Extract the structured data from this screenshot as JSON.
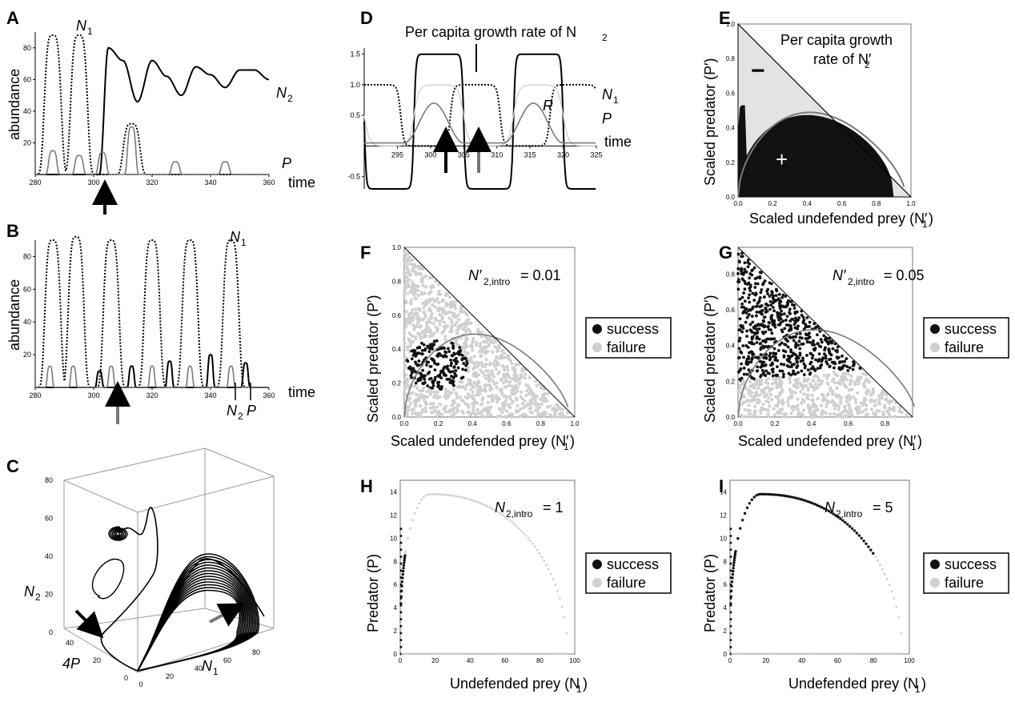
{
  "panels": {
    "A": {
      "letter": "A",
      "ylabel": "abundance",
      "xlabel": "time",
      "labels": [
        "N",
        "1",
        "N",
        "2",
        "P"
      ],
      "xticks": [
        "280",
        "300",
        "320",
        "340",
        "360"
      ],
      "yticks": [
        "20",
        "40",
        "60",
        "80"
      ]
    },
    "B": {
      "letter": "B",
      "ylabel": "abundance",
      "xlabel": "time",
      "labels": [
        "N",
        "1",
        "N",
        "2",
        "P"
      ],
      "xticks": [
        "280",
        "300",
        "320",
        "340",
        "360"
      ],
      "yticks": [
        "20",
        "40",
        "60",
        "80"
      ]
    },
    "C": {
      "letter": "C",
      "axis_n2": "N",
      "axis_n2_sub": "2",
      "axis_4p": "4P",
      "axis_n1": "N",
      "axis_n1_sub": "1",
      "n2ticks": [
        "0",
        "20",
        "40",
        "60",
        "80"
      ],
      "ptick": [
        "0",
        "20",
        "40"
      ],
      "n1ticks": [
        "0",
        "20",
        "40",
        "60",
        "80"
      ]
    },
    "D": {
      "letter": "D",
      "title": "Per capita growth rate of N",
      "title_sub": "2",
      "xlabel": "time",
      "labels": [
        "N",
        "1",
        "P",
        "R"
      ],
      "xticks": [
        "295",
        "300",
        "305",
        "310",
        "315",
        "320",
        "325"
      ],
      "yticks": [
        "1.5",
        "1.0",
        "0.5",
        "-0.5"
      ]
    },
    "E": {
      "letter": "E",
      "title_line1": "Per capita growth",
      "title_line2": "rate of N′",
      "title_sub": "2",
      "ylabel": "Scaled predator (P′)",
      "xlabel": "Scaled undefended prey (N′",
      "xlabel_sub": "1",
      "xlabel_end": ")",
      "minus": "−",
      "plus": "+",
      "ticks": [
        "0.0",
        "0.2",
        "0.4",
        "0.6",
        "0.8",
        "1.0"
      ]
    },
    "F": {
      "letter": "F",
      "note": "N′",
      "note_sub": "2,intro",
      "note_val": "= 0.01",
      "ylabel": "Scaled predator (P′)",
      "xlabel": "Scaled undefended prey (N′",
      "xlabel_sub": "1",
      "xlabel_end": ")",
      "ticks": [
        "0.0",
        "0.2",
        "0.4",
        "0.6",
        "0.8",
        "1.0"
      ]
    },
    "G": {
      "letter": "G",
      "note": "N′",
      "note_sub": "2,intro",
      "note_val": "= 0.05",
      "ylabel": "Scaled predator (P′)",
      "xlabel": "Scaled undefended prey (N′",
      "xlabel_sub": "1",
      "xlabel_end": ")",
      "ticks": [
        "0.0",
        "0.2",
        "0.4",
        "0.6",
        "0.8"
      ]
    },
    "H": {
      "letter": "H",
      "note": "N",
      "note_sub": "2,intro",
      "note_val": "= 1",
      "ylabel": "Predator (P)",
      "xlabel": "Undefended prey (N",
      "xlabel_sub": "1",
      "xlabel_end": ")",
      "xticks": [
        "0",
        "20",
        "40",
        "60",
        "80",
        "100"
      ],
      "yticks": [
        "0",
        "2",
        "4",
        "6",
        "8",
        "10",
        "12",
        "14"
      ]
    },
    "I": {
      "letter": "I",
      "note": "N",
      "note_sub": "2,intro",
      "note_val": "= 5",
      "ylabel": "Predator (P)",
      "xlabel": "Undefended prey (N",
      "xlabel_sub": "1",
      "xlabel_end": ")",
      "xticks": [
        "0",
        "20",
        "40",
        "60",
        "80",
        "100"
      ],
      "yticks": [
        "0",
        "2",
        "4",
        "6",
        "8",
        "10",
        "12",
        "14"
      ]
    }
  },
  "legend": {
    "success": "success",
    "failure": "failure"
  },
  "colors": {
    "success": "#111111",
    "failure": "#d0d0d0",
    "grey": "#7a7a7a",
    "light": "#e3e3e3"
  },
  "chart_data": [
    {
      "id": "A",
      "type": "line",
      "title": "",
      "xlabel": "time",
      "ylabel": "abundance",
      "xlim": [
        280,
        360
      ],
      "ylim": [
        0,
        90
      ],
      "series": [
        {
          "name": "N1",
          "style": "dotted",
          "peaks_at": [
            286,
            295,
            313
          ],
          "peak_values": [
            88,
            88,
            32
          ]
        },
        {
          "name": "N2",
          "style": "solid",
          "x": [
            302,
            305,
            310,
            315,
            320,
            325,
            330,
            335,
            340,
            345,
            350,
            355,
            360
          ],
          "values": [
            0,
            80,
            72,
            46,
            72,
            62,
            50,
            68,
            63,
            55,
            66,
            66,
            60
          ]
        },
        {
          "name": "P",
          "style": "grey",
          "peaks_at": [
            286,
            295,
            303,
            313,
            328,
            345
          ],
          "peak_values": [
            15,
            12,
            14,
            30,
            8,
            8
          ]
        }
      ]
    },
    {
      "id": "B",
      "type": "line",
      "xlabel": "time",
      "ylabel": "abundance",
      "xlim": [
        280,
        360
      ],
      "ylim": [
        0,
        90
      ],
      "series": [
        {
          "name": "N1",
          "style": "dotted",
          "peaks_at": [
            286,
            294,
            306,
            320,
            333,
            347
          ],
          "peak_values": [
            90,
            92,
            90,
            90,
            90,
            90
          ]
        },
        {
          "name": "N2",
          "style": "solid",
          "peaks_at": [
            302,
            313,
            326,
            340,
            352
          ],
          "peak_values": [
            10,
            13,
            16,
            20,
            15
          ]
        },
        {
          "name": "P",
          "style": "grey",
          "peaks_at": [
            285,
            293,
            306,
            320,
            333,
            347
          ],
          "peak_values": [
            13,
            13,
            13,
            13,
            13,
            13
          ]
        }
      ]
    },
    {
      "id": "C",
      "type": "line3d",
      "axes": [
        "4P",
        "N1",
        "N2"
      ],
      "ranges": {
        "N2": [
          0,
          80
        ],
        "4P": [
          0,
          50
        ],
        "N1": [
          0,
          90
        ]
      }
    },
    {
      "id": "D",
      "type": "line",
      "xlabel": "time",
      "xlim": [
        290,
        325
      ],
      "ylim": [
        -0.7,
        1.6
      ],
      "series": [
        {
          "name": "growth rate of N2",
          "style": "solid",
          "levels": [
            1.5,
            -0.7
          ]
        },
        {
          "name": "N1",
          "style": "dotted",
          "levels": [
            1.0,
            0.0
          ]
        },
        {
          "name": "P",
          "style": "grey",
          "levels": [
            0.7,
            0.05
          ]
        },
        {
          "name": "R",
          "style": "lightgrey",
          "levels": [
            1.0,
            0.0
          ]
        }
      ]
    },
    {
      "id": "E",
      "type": "area",
      "xlabel": "Scaled undefended prey (N′1)",
      "ylabel": "Scaled predator (P′)",
      "xlim": [
        0,
        1
      ],
      "ylim": [
        0,
        1
      ],
      "regions": [
        "negative (light grey)",
        "positive (black)"
      ]
    },
    {
      "id": "F",
      "type": "scatter",
      "xlabel": "Scaled undefended prey (N′1)",
      "ylabel": "Scaled predator (P′)",
      "xlim": [
        0,
        1
      ],
      "ylim": [
        0,
        1
      ],
      "intro": 0.01,
      "series": [
        {
          "name": "success"
        },
        {
          "name": "failure"
        }
      ]
    },
    {
      "id": "G",
      "type": "scatter",
      "xlabel": "Scaled undefended prey (N′1)",
      "ylabel": "Scaled predator (P′)",
      "xlim": [
        0,
        0.95
      ],
      "ylim": [
        0,
        0.95
      ],
      "intro": 0.05,
      "series": [
        {
          "name": "success"
        },
        {
          "name": "failure"
        }
      ]
    },
    {
      "id": "H",
      "type": "scatter",
      "xlabel": "Undefended prey (N1)",
      "ylabel": "Predator (P)",
      "xlim": [
        0,
        100
      ],
      "ylim": [
        0,
        15
      ],
      "intro": 1,
      "peak": [
        17,
        13.8
      ],
      "end": [
        96,
        0
      ],
      "series": [
        {
          "name": "success",
          "N1_range": [
            0,
            3
          ]
        },
        {
          "name": "failure",
          "N1_range": [
            3,
            96
          ]
        }
      ]
    },
    {
      "id": "I",
      "type": "scatter",
      "xlabel": "Undefended prey (N1)",
      "ylabel": "Predator (P)",
      "xlim": [
        0,
        100
      ],
      "ylim": [
        0,
        15
      ],
      "intro": 5,
      "peak": [
        17,
        13.8
      ],
      "end": [
        96,
        0
      ],
      "series": [
        {
          "name": "success",
          "N1_range": [
            0,
            80
          ]
        },
        {
          "name": "failure",
          "N1_range": [
            80,
            96
          ]
        }
      ]
    }
  ]
}
